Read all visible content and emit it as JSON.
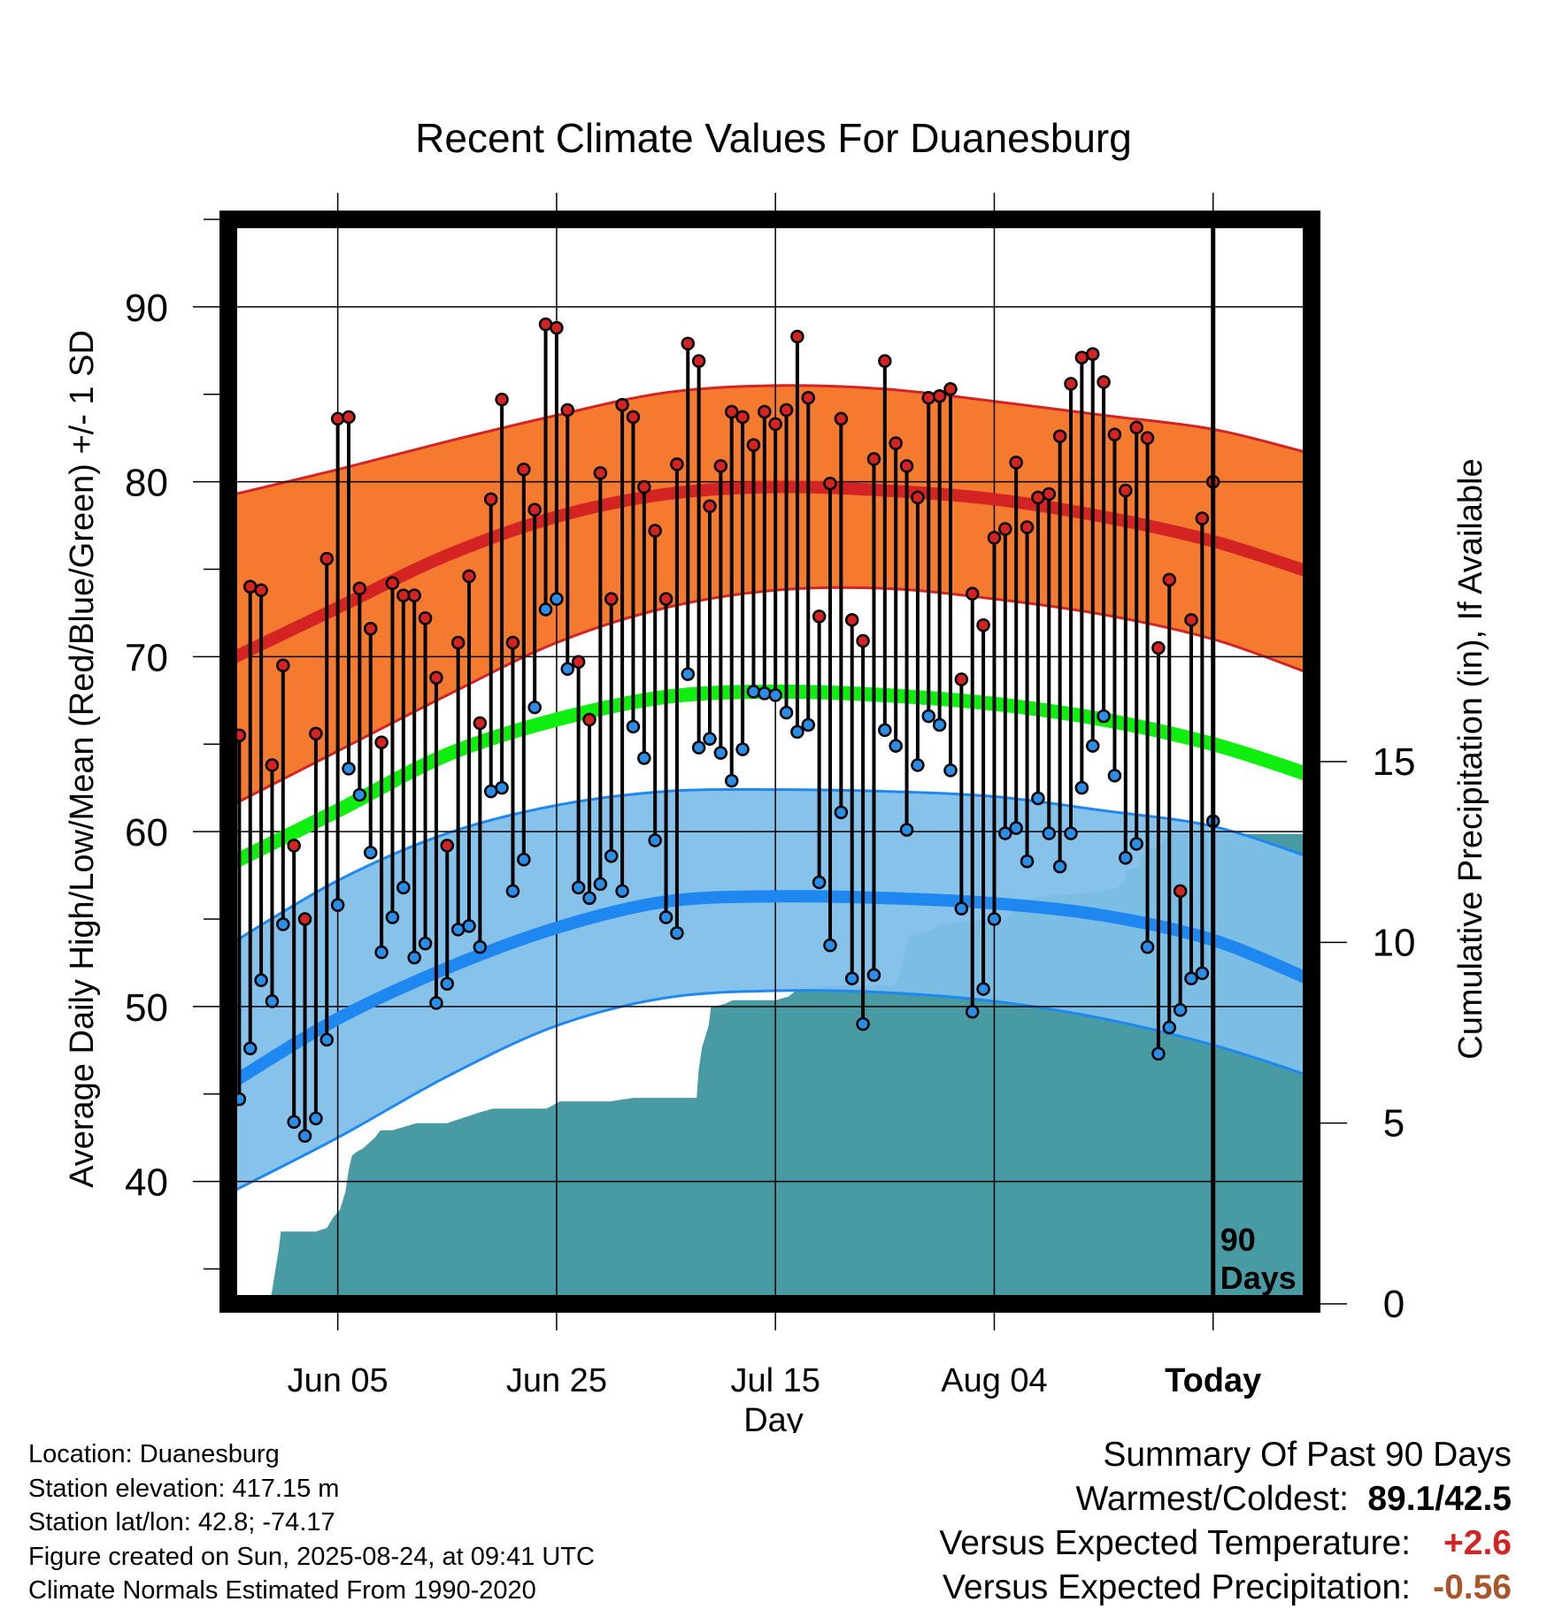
{
  "chart_data": {
    "type": "line",
    "title": "Recent Climate Values For Duanesburg",
    "xlabel": "Day",
    "ylabel_left": "Average Daily High/Low/Mean (Red/Blue/Green) +/- 1 SD",
    "ylabel_right": "Cumulative Precipitation (in), If Available",
    "y_left_range": [
      33,
      95
    ],
    "y_left_ticks": [
      40,
      50,
      60,
      70,
      80,
      90
    ],
    "y_right_range": [
      0,
      30
    ],
    "y_right_ticks": [
      0,
      5,
      10,
      15
    ],
    "x_range_days": [
      -90,
      9
    ],
    "x_ticks": [
      {
        "day": -80,
        "label": "Jun 05"
      },
      {
        "day": -60,
        "label": "Jun 25"
      },
      {
        "day": -40,
        "label": "Jul 15"
      },
      {
        "day": -20,
        "label": "Aug 04"
      },
      {
        "day": 0,
        "label": "Today"
      }
    ],
    "today_annotation": [
      "90",
      "Days"
    ],
    "normals": {
      "x": [
        -90,
        -80,
        -70,
        -60,
        -50,
        -40,
        -30,
        -20,
        -10,
        0,
        9
      ],
      "high_mean": [
        69.8,
        72.8,
        75.8,
        78.0,
        79.3,
        79.7,
        79.5,
        79.0,
        78.0,
        76.6,
        74.8
      ],
      "high_upper": [
        79.2,
        80.7,
        82.3,
        83.8,
        85.1,
        85.5,
        85.3,
        84.6,
        83.8,
        83.0,
        81.6
      ],
      "high_lower": [
        61.4,
        64.6,
        67.8,
        70.8,
        72.8,
        73.8,
        73.9,
        73.3,
        72.4,
        71.0,
        69.0
      ],
      "mean": [
        58.1,
        61.2,
        64.4,
        66.4,
        67.7,
        68.0,
        67.8,
        67.3,
        66.4,
        65.0,
        63.2
      ],
      "low_mean": [
        45.5,
        49.3,
        52.2,
        54.5,
        56.0,
        56.3,
        56.2,
        55.9,
        55.2,
        53.8,
        51.5
      ],
      "low_upper": [
        53.5,
        57.2,
        59.9,
        61.5,
        62.3,
        62.4,
        62.3,
        62.0,
        61.2,
        60.3,
        58.5
      ],
      "low_lower": [
        39.3,
        42.5,
        46.0,
        48.9,
        50.5,
        50.9,
        50.8,
        50.3,
        49.3,
        47.8,
        46.0
      ]
    },
    "daily_observations": {
      "start_day": -89,
      "high": [
        65.5,
        74.0,
        73.8,
        63.8,
        69.5,
        59.2,
        55.0,
        65.6,
        75.6,
        83.6,
        83.7,
        73.9,
        71.6,
        65.1,
        74.2,
        73.5,
        73.5,
        72.2,
        68.8,
        59.2,
        70.8,
        74.6,
        66.2,
        79.0,
        84.7,
        70.8,
        80.7,
        78.4,
        89.0,
        88.8,
        84.1,
        69.7,
        66.4,
        80.5,
        73.3,
        84.4,
        83.7,
        79.7,
        77.2,
        73.3,
        81.0,
        87.9,
        86.9,
        78.6,
        80.9,
        84.0,
        83.7,
        82.1,
        84.0,
        83.3,
        84.1,
        88.3,
        84.8,
        72.3,
        79.9,
        83.6,
        72.1,
        70.9,
        81.3,
        86.9,
        82.2,
        80.9,
        79.1,
        84.8,
        84.9,
        85.3,
        68.7,
        73.6,
        71.8,
        76.8,
        77.3,
        81.1,
        77.4,
        79.1,
        79.3,
        82.6,
        85.6,
        87.1,
        87.3,
        85.7,
        82.7,
        79.5,
        83.1,
        82.5,
        70.5,
        74.4,
        56.6,
        72.1,
        77.9,
        80.0
      ],
      "low": [
        44.7,
        47.6,
        51.5,
        50.3,
        54.7,
        43.4,
        42.6,
        43.6,
        48.1,
        55.8,
        63.6,
        62.1,
        58.8,
        53.1,
        55.1,
        56.8,
        52.8,
        53.6,
        50.2,
        51.3,
        54.4,
        54.6,
        53.4,
        62.3,
        62.5,
        56.6,
        58.4,
        67.1,
        72.7,
        73.3,
        69.3,
        56.8,
        56.2,
        57.0,
        58.6,
        56.6,
        66.0,
        64.2,
        59.5,
        55.1,
        54.2,
        69.0,
        64.8,
        65.3,
        64.5,
        62.9,
        64.7,
        68.0,
        67.9,
        67.8,
        66.8,
        65.7,
        66.1,
        57.1,
        53.5,
        61.1,
        51.6,
        49.0,
        51.8,
        65.8,
        64.9,
        60.1,
        63.8,
        66.6,
        66.1,
        63.5,
        55.6,
        49.7,
        51.0,
        55.0,
        59.9,
        60.2,
        58.3,
        61.9,
        59.9,
        58.0,
        59.9,
        62.5,
        64.9,
        66.6,
        63.2,
        58.5,
        59.3,
        53.4,
        47.3,
        48.8,
        49.8,
        51.6,
        51.9,
        60.6
      ]
    },
    "cumulative_precipitation": {
      "x": [
        -90,
        -86.2,
        -85.4,
        -85.2,
        -82,
        -81,
        -80.4,
        -79.8,
        -79.3,
        -79.0,
        -78.7,
        -78.3,
        -77.7,
        -76.6,
        -76.1,
        -75.4,
        -75.0,
        -73.9,
        -72.8,
        -71.0,
        -70.0,
        -69.0,
        -67.0,
        -65.8,
        -64.9,
        -64.0,
        -63.0,
        -60.9,
        -60.3,
        -59.7,
        -56.4,
        -55.1,
        -53.0,
        -50.9,
        -47.2,
        -47.0,
        -46.7,
        -46.1,
        -45.9,
        -44.6,
        -43.9,
        -42.9,
        -41.0,
        -40.0,
        -38.8,
        -38.0,
        -37.0,
        -36.0,
        -33.0,
        -31.9,
        -31.7,
        -30.9,
        -30.0,
        -29.0,
        -28.0,
        -27.8,
        -27.0,
        -26.0,
        -24.9,
        -21.8,
        -20.9,
        -19.1,
        -18.7,
        -17.9,
        -16.8,
        -15.0,
        -14.9,
        -9.9,
        -8.8,
        -8.2,
        -7.9,
        -6.8,
        -6.6,
        -6.2,
        -5.9,
        -4.9,
        -4.6,
        -4.2,
        -3.9,
        9
      ],
      "values": [
        0,
        0,
        1.5,
        2.0,
        2.0,
        2.1,
        2.4,
        2.6,
        3.1,
        3.7,
        4.1,
        4.2,
        4.3,
        4.6,
        4.8,
        4.8,
        4.8,
        4.9,
        5.0,
        5.0,
        5.0,
        5.1,
        5.3,
        5.4,
        5.4,
        5.4,
        5.4,
        5.4,
        5.5,
        5.6,
        5.6,
        5.6,
        5.7,
        5.7,
        5.7,
        6.5,
        7.1,
        7.7,
        8.2,
        8.3,
        8.4,
        8.4,
        8.4,
        8.4,
        8.5,
        8.7,
        8.7,
        8.8,
        8.8,
        8.8,
        8.8,
        8.8,
        8.8,
        8.8,
        9.9,
        10.2,
        10.2,
        10.3,
        10.5,
        10.6,
        10.6,
        10.6,
        10.7,
        11.1,
        11.2,
        11.3,
        11.3,
        11.4,
        11.5,
        11.6,
        12.0,
        12.1,
        12.3,
        12.5,
        12.6,
        12.7,
        12.8,
        12.9,
        13.0,
        13.0
      ]
    },
    "colors": {
      "high_band": "#f47a30",
      "high_line": "#d42323",
      "low_band": "#7fbfe8",
      "low_line": "#1f88f0",
      "mean_line": "#10ee10",
      "precip_fill": "#489aa3",
      "high_dot": "#d42323",
      "low_dot": "#2a8ee8"
    },
    "grid": true
  },
  "footer": {
    "location": "Location: Duanesburg",
    "elevation": "Station elevation: 417.15 m",
    "latlon": "Station lat/lon: 42.8; -74.17",
    "created": "Figure created on Sun, 2025-08-24, at 09:41 UTC",
    "normals": "Climate Normals Estimated From 1990-2020"
  },
  "summary": {
    "heading": "Summary Of Past 90 Days",
    "warm_cold_label": "Warmest/Coldest:",
    "warm_cold_value": "89.1/42.5",
    "temp_label": "Versus Expected Temperature:",
    "temp_value": "+2.6",
    "temp_color": "#d42323",
    "precip_label": "Versus Expected Precipitation:",
    "precip_value": "-0.56",
    "precip_color": "#a8562a"
  }
}
